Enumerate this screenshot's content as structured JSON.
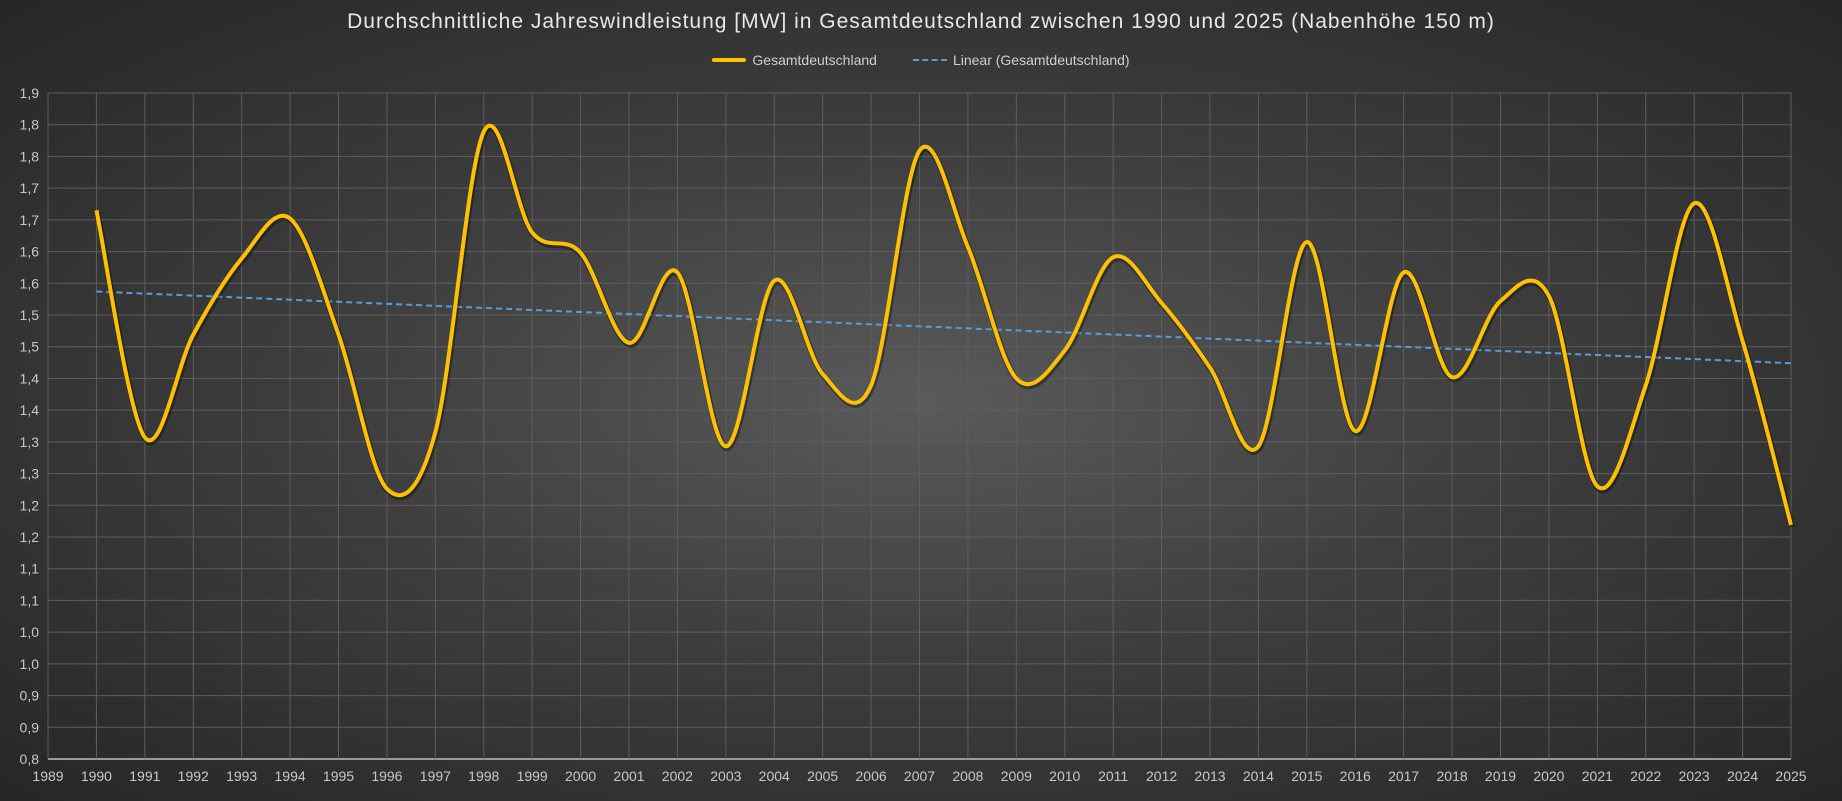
{
  "chart_data": {
    "type": "line",
    "title": "Durchschnittliche Jahreswindleistung [MW] in Gesamtdeutschland zwischen 1990 und 2025 (Nabenhöhe 150 m)",
    "xlabel": "",
    "ylabel": "",
    "x_categories": [
      1989,
      1990,
      1991,
      1992,
      1993,
      1994,
      1995,
      1996,
      1997,
      1998,
      1999,
      2000,
      2001,
      2002,
      2003,
      2004,
      2005,
      2006,
      2007,
      2008,
      2009,
      2010,
      2011,
      2012,
      2013,
      2014,
      2015,
      2016,
      2017,
      2018,
      2019,
      2020,
      2021,
      2022,
      2023,
      2024,
      2025
    ],
    "ylim": [
      0.8,
      1.85
    ],
    "y_ticks": [
      0.8,
      0.85,
      0.9,
      0.95,
      1.0,
      1.05,
      1.1,
      1.15,
      1.2,
      1.25,
      1.3,
      1.35,
      1.4,
      1.45,
      1.5,
      1.55,
      1.6,
      1.65,
      1.7,
      1.75,
      1.8,
      1.85
    ],
    "y_tick_labels": [
      "0,8",
      "0,9",
      "0,9",
      "1,0",
      "1,0",
      "1,1",
      "1,1",
      "1,2",
      "1,2",
      "1,3",
      "1,3",
      "1,4",
      "1,4",
      "1,5",
      "1,5",
      "1,6",
      "1,6",
      "1,7",
      "1,7",
      "1,8",
      "1,8",
      "1,9"
    ],
    "grid": true,
    "legend_position": "top",
    "series": [
      {
        "name": "Gesamtdeutschland",
        "color": "#ffc000",
        "smooth": true,
        "x": [
          1990,
          1991,
          1992,
          1993,
          1994,
          1995,
          1996,
          1997,
          1998,
          1999,
          2000,
          2001,
          2002,
          2003,
          2004,
          2005,
          2006,
          2007,
          2008,
          2009,
          2010,
          2011,
          2012,
          2013,
          2014,
          2015,
          2016,
          2017,
          2018,
          2019,
          2020,
          2021,
          2022,
          2023,
          2024,
          2025
        ],
        "values": [
          1.665,
          1.307,
          1.469,
          1.589,
          1.652,
          1.469,
          1.226,
          1.315,
          1.789,
          1.63,
          1.598,
          1.456,
          1.567,
          1.293,
          1.554,
          1.407,
          1.389,
          1.759,
          1.607,
          1.4,
          1.444,
          1.591,
          1.519,
          1.417,
          1.293,
          1.615,
          1.317,
          1.567,
          1.402,
          1.522,
          1.53,
          1.23,
          1.389,
          1.676,
          1.459,
          1.169
        ]
      },
      {
        "name": "Linear (Gesamtdeutschland)",
        "color": "#5b9bd5",
        "dashed": true,
        "x": [
          1990,
          2025
        ],
        "values": [
          1.537,
          1.424
        ]
      }
    ]
  }
}
